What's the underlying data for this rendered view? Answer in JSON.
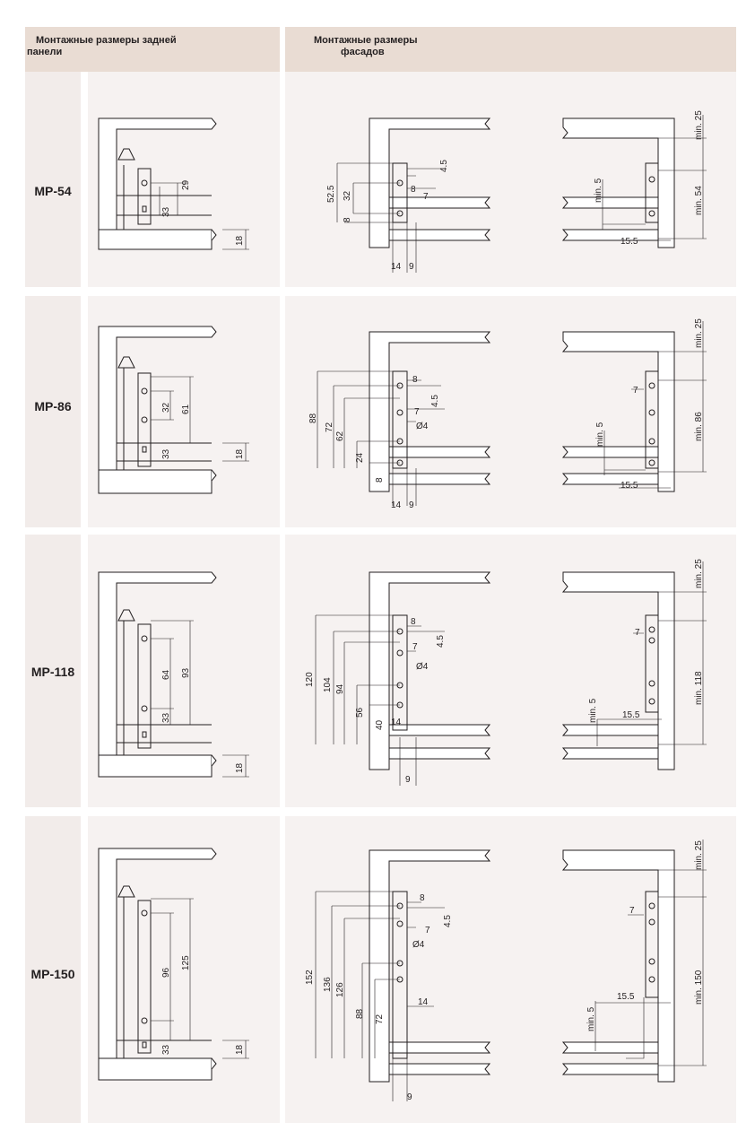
{
  "header": {
    "back_panel": [
      "Монтажные размеры задней",
      "панели"
    ],
    "fronts": [
      "Монтажные размеры",
      "фасадов"
    ]
  },
  "rows": [
    {
      "model": "MP-54",
      "back": [
        "29",
        "33",
        "18"
      ],
      "front": [
        "52.5",
        "32",
        "8",
        "4.5",
        "8",
        "7",
        "14",
        "9"
      ],
      "side": [
        "min. 25",
        "min. 54",
        "min. 5",
        "15.5"
      ]
    },
    {
      "model": "MP-86",
      "back": [
        "32",
        "61",
        "33",
        "18"
      ],
      "front": [
        "88",
        "72",
        "62",
        "24",
        "8",
        "8",
        "4.5",
        "7",
        "Ø4",
        "14",
        "9"
      ],
      "side": [
        "min. 25",
        "7",
        "min. 86",
        "min. 5",
        "15.5"
      ]
    },
    {
      "model": "MP-118",
      "back": [
        "64",
        "93",
        "33",
        "18"
      ],
      "front": [
        "120",
        "104",
        "94",
        "56",
        "40",
        "8",
        "7",
        "4.5",
        "Ø4",
        "14",
        "9"
      ],
      "side": [
        "min. 25",
        "7",
        "min. 118",
        "min. 5",
        "15.5"
      ]
    },
    {
      "model": "MP-150",
      "back": [
        "96",
        "125",
        "33",
        "18"
      ],
      "front": [
        "152",
        "136",
        "126",
        "88",
        "72",
        "8",
        "7",
        "4.5",
        "Ø4",
        "14",
        "9"
      ],
      "side": [
        "min. 25",
        "7",
        "15.5",
        "min. 150",
        "min. 5"
      ]
    }
  ]
}
